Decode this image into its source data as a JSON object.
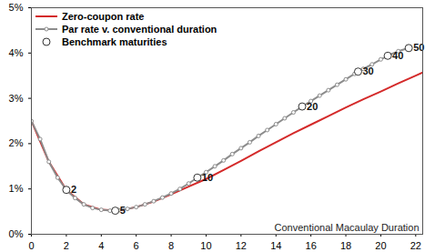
{
  "chart_data": {
    "type": "line",
    "xlabel": "Conventional Macaulay Duration",
    "xlim": [
      0,
      22.4
    ],
    "xticks": [
      0,
      2,
      4,
      6,
      8,
      10,
      12,
      14,
      16,
      18,
      20,
      22
    ],
    "ylim": [
      0,
      5
    ],
    "yticks": [
      {
        "value": 0,
        "label": "0%"
      },
      {
        "value": 1,
        "label": "1%"
      },
      {
        "value": 2,
        "label": "2%"
      },
      {
        "value": 3,
        "label": "3%"
      },
      {
        "value": 4,
        "label": "4%"
      },
      {
        "value": 5,
        "label": "5%"
      }
    ],
    "grid": false,
    "legend": "top-left",
    "series": [
      {
        "name": "Zero-coupon rate",
        "type": "line",
        "color": "#d42a2a",
        "x": [
          0,
          1,
          2,
          3,
          4,
          5,
          6,
          7,
          8,
          9,
          10,
          11,
          12,
          13,
          14,
          15,
          16,
          17,
          18,
          19,
          20,
          21,
          22,
          22.4
        ],
        "values": [
          2.5,
          1.6,
          0.98,
          0.66,
          0.54,
          0.52,
          0.6,
          0.72,
          0.88,
          1.05,
          1.22,
          1.42,
          1.62,
          1.83,
          2.03,
          2.23,
          2.42,
          2.61,
          2.8,
          2.98,
          3.15,
          3.33,
          3.5,
          3.57
        ]
      },
      {
        "name": "Par rate v. conventional duration",
        "type": "line",
        "marker": "circle",
        "color": "#8c8c8c",
        "x": [
          0,
          0.5,
          1,
          1.5,
          2,
          2.5,
          3,
          3.5,
          4,
          4.5,
          5,
          5.5,
          6,
          6.5,
          7,
          7.5,
          8,
          8.5,
          9,
          9.5,
          10,
          10.5,
          11,
          11.5,
          12,
          12.5,
          13,
          13.5,
          14,
          14.5,
          15,
          15.5,
          16,
          16.5,
          17,
          17.5,
          18,
          18.5,
          19,
          19.5,
          20,
          20.5,
          21,
          21.6
        ],
        "values": [
          2.5,
          2.1,
          1.6,
          1.25,
          0.98,
          0.8,
          0.66,
          0.58,
          0.54,
          0.52,
          0.53,
          0.56,
          0.6,
          0.66,
          0.73,
          0.81,
          0.9,
          1.0,
          1.12,
          1.25,
          1.37,
          1.5,
          1.63,
          1.77,
          1.9,
          2.03,
          2.17,
          2.3,
          2.43,
          2.56,
          2.69,
          2.82,
          2.94,
          3.06,
          3.18,
          3.3,
          3.42,
          3.54,
          3.65,
          3.75,
          3.86,
          3.96,
          4.04,
          4.11
        ]
      },
      {
        "name": "Benchmark maturities",
        "type": "scatter",
        "marker": "circle",
        "color": "#333333",
        "x": [
          2,
          4.8,
          9.5,
          15.5,
          18.7,
          20.4,
          21.6
        ],
        "values": [
          0.98,
          0.52,
          1.25,
          2.82,
          3.59,
          3.94,
          4.11
        ],
        "labels": [
          "2",
          "5",
          "10",
          "20",
          "30",
          "40",
          "50"
        ]
      }
    ]
  }
}
